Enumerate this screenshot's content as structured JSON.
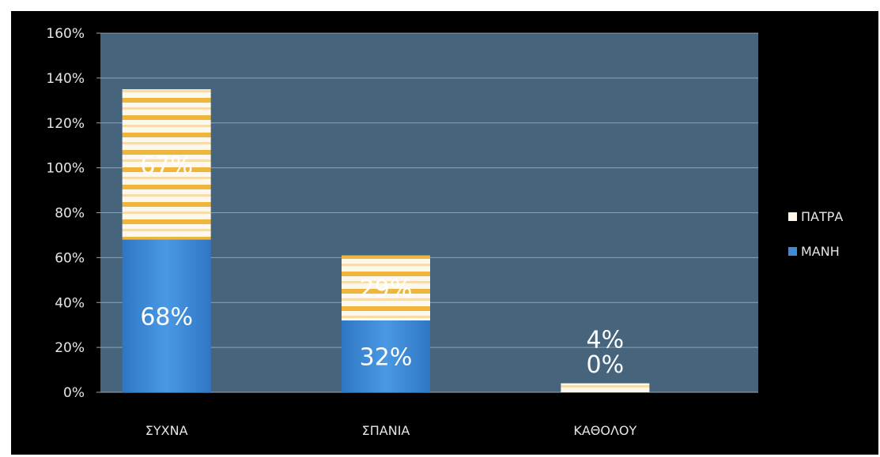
{
  "chart_data": {
    "type": "bar",
    "stacked": true,
    "categories": [
      "ΣΥΧΝΑ",
      "ΣΠΑΝΙΑ",
      "ΚΑΘΟΛΟΥ"
    ],
    "series": [
      {
        "name": "ΜΑΝΗ",
        "values": [
          68,
          32,
          0
        ],
        "labels": [
          "68%",
          "32%",
          "0%"
        ],
        "color": "#3f8bd6"
      },
      {
        "name": "ΠΑΤΡΑ",
        "values": [
          67,
          29,
          4
        ],
        "labels": [
          "67%",
          "29%",
          "4%"
        ],
        "color": "#fff6e6"
      }
    ],
    "y_ticks": [
      "0%",
      "20%",
      "40%",
      "60%",
      "80%",
      "100%",
      "120%",
      "140%",
      "160%"
    ],
    "ylim": [
      0,
      160
    ],
    "grid": true,
    "legend": "right",
    "colors": {
      "background": "#000000",
      "plot_area": "#47647d",
      "gridline": "#9fb3c2",
      "stripe": "#f0b63c"
    }
  }
}
